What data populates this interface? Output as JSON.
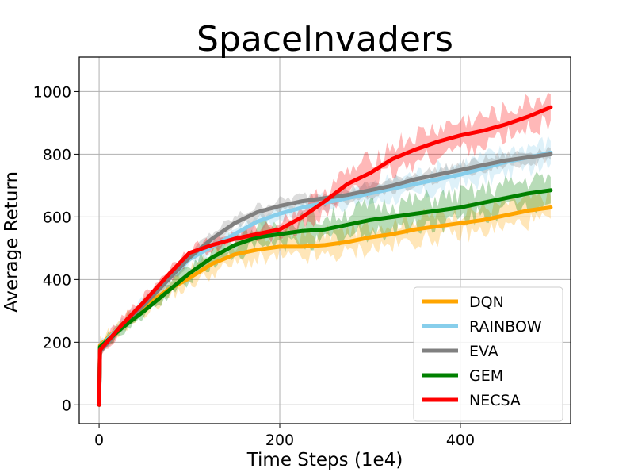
{
  "chart_data": {
    "type": "line",
    "title": "SpaceInvaders",
    "xlabel": "Time Steps (1e4)",
    "ylabel": "Average Return",
    "xlim": [
      -22,
      522
    ],
    "ylim": [
      -60,
      1110
    ],
    "xticks": [
      0,
      200,
      400
    ],
    "yticks": [
      0,
      200,
      400,
      600,
      800,
      1000
    ],
    "grid": true,
    "legend_position": "lower-right",
    "x": [
      0,
      1,
      25,
      50,
      75,
      100,
      125,
      150,
      175,
      200,
      225,
      250,
      275,
      300,
      325,
      350,
      375,
      400,
      425,
      450,
      475,
      500
    ],
    "series": [
      {
        "name": "DQN",
        "color": "#FFA500",
        "values": [
          0,
          190,
          255,
          315,
          365,
          405,
          450,
          480,
          495,
          505,
          505,
          510,
          520,
          535,
          545,
          560,
          570,
          580,
          590,
          605,
          620,
          630
        ],
        "band": [
          30,
          30,
          30,
          40,
          40,
          40,
          50,
          50,
          60,
          60,
          60,
          60,
          60,
          60,
          60,
          60,
          60,
          60,
          60,
          60,
          60,
          60
        ]
      },
      {
        "name": "RAINBOW",
        "color": "#87CEEB",
        "values": [
          0,
          185,
          255,
          325,
          395,
          465,
          505,
          545,
          585,
          610,
          630,
          645,
          660,
          675,
          690,
          705,
          720,
          735,
          755,
          775,
          790,
          805
        ],
        "band": [
          25,
          25,
          30,
          30,
          30,
          30,
          30,
          30,
          30,
          30,
          30,
          35,
          40,
          45,
          50,
          55,
          60,
          60,
          60,
          60,
          60,
          60
        ]
      },
      {
        "name": "EVA",
        "color": "#808080",
        "values": [
          0,
          170,
          250,
          320,
          395,
          470,
          530,
          580,
          615,
          635,
          650,
          660,
          670,
          685,
          700,
          720,
          735,
          750,
          765,
          780,
          790,
          800
        ],
        "band": [
          30,
          30,
          25,
          25,
          25,
          25,
          30,
          30,
          30,
          30,
          30,
          30,
          30,
          30,
          30,
          30,
          30,
          30,
          30,
          30,
          30,
          30
        ]
      },
      {
        "name": "GEM",
        "color": "#008000",
        "values": [
          0,
          185,
          245,
          300,
          360,
          420,
          470,
          510,
          535,
          545,
          555,
          560,
          575,
          590,
          600,
          610,
          620,
          630,
          645,
          660,
          675,
          685
        ],
        "band": [
          25,
          25,
          25,
          30,
          30,
          40,
          40,
          50,
          50,
          60,
          60,
          60,
          70,
          70,
          70,
          70,
          70,
          70,
          70,
          70,
          70,
          70
        ]
      },
      {
        "name": "NECSA",
        "color": "#FF0000",
        "values": [
          0,
          175,
          255,
          330,
          410,
          485,
          510,
          530,
          545,
          560,
          600,
          650,
          705,
          740,
          785,
          815,
          840,
          860,
          875,
          895,
          920,
          950
        ],
        "band": [
          25,
          25,
          30,
          30,
          30,
          30,
          30,
          30,
          35,
          40,
          50,
          60,
          60,
          70,
          70,
          70,
          70,
          70,
          70,
          70,
          70,
          70
        ]
      }
    ]
  }
}
